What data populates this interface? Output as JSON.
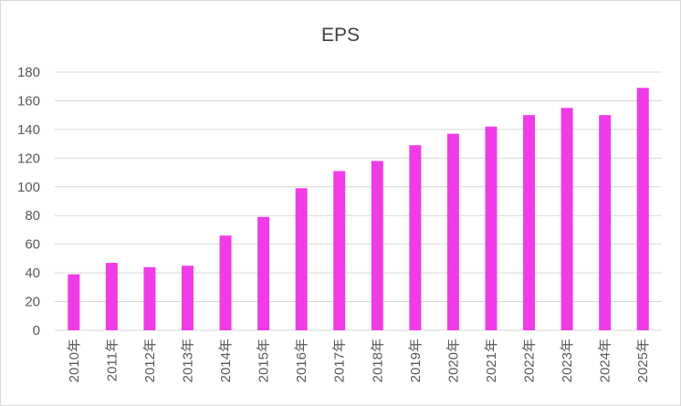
{
  "chart_data": {
    "type": "bar",
    "title": "EPS",
    "xlabel": "",
    "ylabel": "",
    "ylim": [
      0,
      180
    ],
    "yticks": [
      0,
      20,
      40,
      60,
      80,
      100,
      120,
      140,
      160,
      180
    ],
    "ytick_labels": [
      "0",
      "20",
      "40",
      "60",
      "80",
      "100",
      "120",
      "140",
      "160",
      "180"
    ],
    "grid": true,
    "legend": "none",
    "categories": [
      "2010年",
      "2011年",
      "2012年",
      "2013年",
      "2014年",
      "2015年",
      "2016年",
      "2017年",
      "2018年",
      "2019年",
      "2020年",
      "2021年",
      "2022年",
      "2023年",
      "2024年",
      "2025年"
    ],
    "series": [
      {
        "name": "EPS",
        "color": "#f03ce6",
        "values": [
          39,
          47,
          44,
          45,
          66,
          79,
          99,
          111,
          118,
          129,
          137,
          142,
          150,
          155,
          150,
          169
        ]
      }
    ]
  }
}
